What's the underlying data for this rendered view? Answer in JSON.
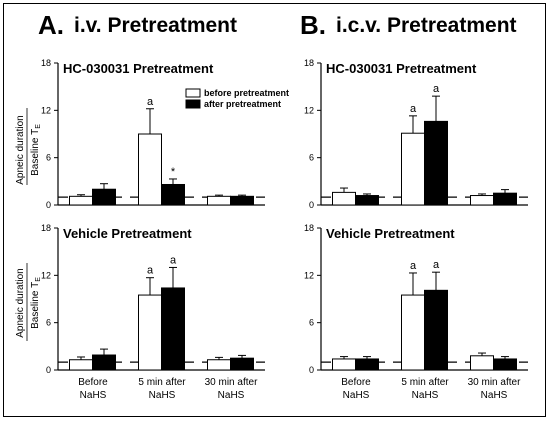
{
  "figure": {
    "section_a": {
      "letter": "A.",
      "title": "i.v. Pretreatment"
    },
    "section_b": {
      "letter": "B.",
      "title": "i.c.v. Pretreatment"
    },
    "y_axis_label_line1": "Apneic duration",
    "y_axis_label_line2": "Baseline T",
    "y_axis_label_subscript": "E",
    "x_tick_labels": [
      [
        "Before",
        "NaHS"
      ],
      [
        "5 min after",
        "NaHS"
      ],
      [
        "30 min after",
        "NaHS"
      ]
    ],
    "legend": {
      "before_label": "before pretreatment",
      "after_label": "after pretreatment",
      "before_color": "#ffffff",
      "after_color": "#000000"
    }
  },
  "chart_data": [
    {
      "type": "bar",
      "panel": "A-top",
      "title": "HC-030031 Pretreatment",
      "categories": [
        "Before NaHS",
        "5 min after NaHS",
        "30 min after NaHS"
      ],
      "series": [
        {
          "name": "before pretreatment",
          "values": [
            1.1,
            9.0,
            1.1
          ],
          "errors": [
            0.2,
            3.2,
            0.15
          ]
        },
        {
          "name": "after pretreatment",
          "values": [
            2.0,
            2.6,
            1.1
          ],
          "errors": [
            0.7,
            0.7,
            0.15
          ]
        }
      ],
      "annotations": [
        {
          "series": 0,
          "category": 1,
          "text": "a"
        },
        {
          "series": 1,
          "category": 1,
          "text": "*"
        }
      ],
      "baseline": 1,
      "ylim": [
        0,
        18
      ],
      "yticks": [
        0,
        6,
        12,
        18
      ],
      "legend": "top-right"
    },
    {
      "type": "bar",
      "panel": "A-bottom",
      "title": "Vehicle Pretreatment",
      "categories": [
        "Before NaHS",
        "5 min after NaHS",
        "30 min after NaHS"
      ],
      "series": [
        {
          "name": "before pretreatment",
          "values": [
            1.3,
            9.5,
            1.3
          ],
          "errors": [
            0.35,
            2.2,
            0.3
          ]
        },
        {
          "name": "after pretreatment",
          "values": [
            1.9,
            10.4,
            1.5
          ],
          "errors": [
            0.75,
            2.6,
            0.35
          ]
        }
      ],
      "annotations": [
        {
          "series": 0,
          "category": 1,
          "text": "a"
        },
        {
          "series": 1,
          "category": 1,
          "text": "a"
        }
      ],
      "baseline": 1,
      "ylim": [
        0,
        18
      ],
      "yticks": [
        0,
        6,
        12,
        18
      ]
    },
    {
      "type": "bar",
      "panel": "B-top",
      "title": "HC-030031 Pretreatment",
      "categories": [
        "Before NaHS",
        "5 min after NaHS",
        "30 min after NaHS"
      ],
      "series": [
        {
          "name": "before pretreatment",
          "values": [
            1.6,
            9.1,
            1.2
          ],
          "errors": [
            0.55,
            2.2,
            0.2
          ]
        },
        {
          "name": "after pretreatment",
          "values": [
            1.2,
            10.6,
            1.5
          ],
          "errors": [
            0.2,
            3.2,
            0.45
          ]
        }
      ],
      "annotations": [
        {
          "series": 0,
          "category": 1,
          "text": "a"
        },
        {
          "series": 1,
          "category": 1,
          "text": "a"
        }
      ],
      "baseline": 1,
      "ylim": [
        0,
        18
      ],
      "yticks": [
        0,
        6,
        12,
        18
      ]
    },
    {
      "type": "bar",
      "panel": "B-bottom",
      "title": "Vehicle Pretreatment",
      "categories": [
        "Before NaHS",
        "5 min after NaHS",
        "30 min after NaHS"
      ],
      "series": [
        {
          "name": "before pretreatment",
          "values": [
            1.4,
            9.5,
            1.8
          ],
          "errors": [
            0.3,
            2.8,
            0.35
          ]
        },
        {
          "name": "after pretreatment",
          "values": [
            1.4,
            10.1,
            1.4
          ],
          "errors": [
            0.3,
            2.3,
            0.3
          ]
        }
      ],
      "annotations": [
        {
          "series": 0,
          "category": 1,
          "text": "a"
        },
        {
          "series": 1,
          "category": 1,
          "text": "a"
        }
      ],
      "baseline": 1,
      "ylim": [
        0,
        18
      ],
      "yticks": [
        0,
        6,
        12,
        18
      ]
    }
  ]
}
